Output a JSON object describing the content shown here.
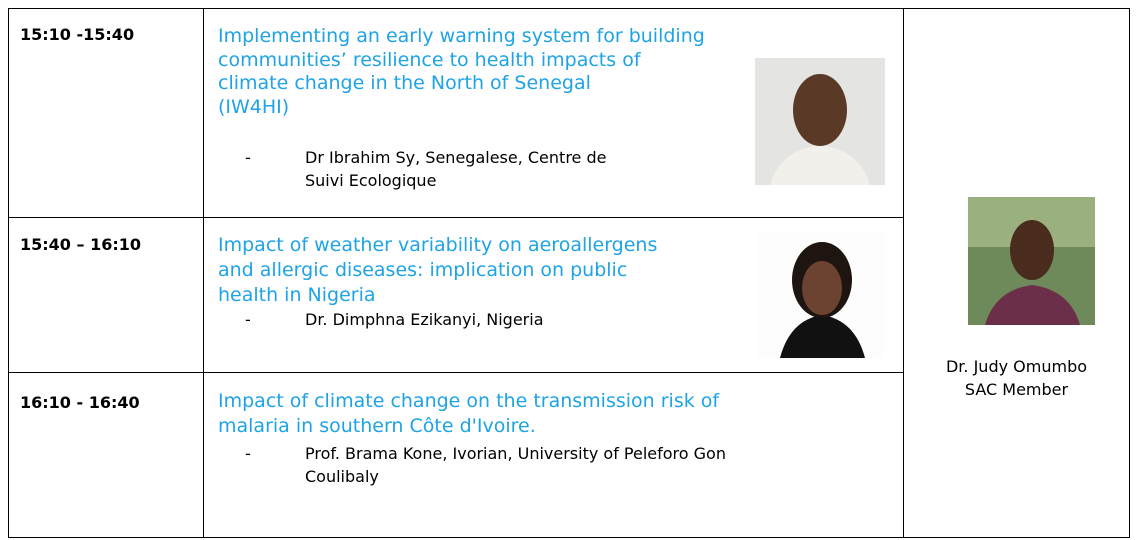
{
  "table": {
    "rows": [
      {
        "time": "15:10 -15:40",
        "title_lines": [
          "Implementing an early warning system for building",
          "communities’ resilience to health impacts of",
          "climate change in the North of Senegal",
          "(IW4HI)"
        ],
        "bullet": "-",
        "speaker_lines": [
          "Dr Ibrahim Sy, Senegalese, Centre de",
          "Suivi Ecologique"
        ]
      },
      {
        "time": "15:40 – 16:10",
        "title_lines": [
          "Impact of weather variability on aeroallergens",
          "and allergic diseases: implication on public",
          "health in Nigeria"
        ],
        "bullet": "-",
        "speaker_lines": [
          "Dr. Dimphna Ezikanyi, Nigeria"
        ]
      },
      {
        "time": "16:10 - 16:40",
        "title_lines": [
          "Impact of climate change on the transmission risk of",
          "malaria in southern Côte d'Ivoire."
        ],
        "bullet": "-",
        "speaker_lines": [
          "Prof. Brama Kone, Ivorian, University of Peleforo Gon",
          "Coulibaly"
        ]
      }
    ],
    "chair": {
      "name": "Dr. Judy Omumbo",
      "role": "SAC Member"
    }
  }
}
